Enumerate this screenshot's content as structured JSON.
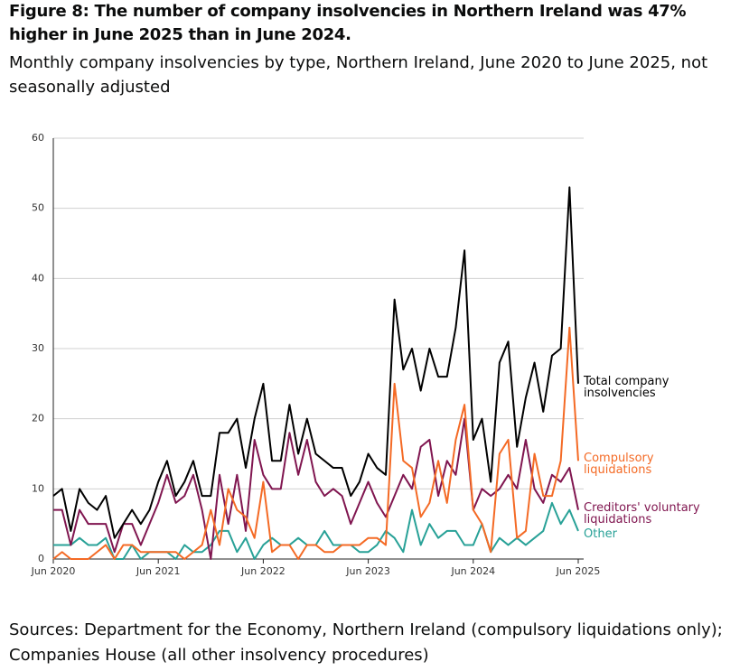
{
  "chart_data": {
    "type": "line",
    "title": "Figure 8: The number of company insolvencies in Northern Ireland was 47% higher in June 2025 than in June 2024.",
    "subtitle": "Monthly company insolvencies by type, Northern Ireland, June 2020 to June 2025, not seasonally adjusted",
    "source": "Sources: Department for the Economy, Northern Ireland (compulsory liquidations only); Companies House (all other insolvency procedures)",
    "x": [
      "2020-06",
      "2020-07",
      "2020-08",
      "2020-09",
      "2020-10",
      "2020-11",
      "2020-12",
      "2021-01",
      "2021-02",
      "2021-03",
      "2021-04",
      "2021-05",
      "2021-06",
      "2021-07",
      "2021-08",
      "2021-09",
      "2021-10",
      "2021-11",
      "2021-12",
      "2022-01",
      "2022-02",
      "2022-03",
      "2022-04",
      "2022-05",
      "2022-06",
      "2022-07",
      "2022-08",
      "2022-09",
      "2022-10",
      "2022-11",
      "2022-12",
      "2023-01",
      "2023-02",
      "2023-03",
      "2023-04",
      "2023-05",
      "2023-06",
      "2023-07",
      "2023-08",
      "2023-09",
      "2023-10",
      "2023-11",
      "2023-12",
      "2024-01",
      "2024-02",
      "2024-03",
      "2024-04",
      "2024-05",
      "2024-06",
      "2024-07",
      "2024-08",
      "2024-09",
      "2024-10",
      "2024-11",
      "2024-12",
      "2025-01",
      "2025-02",
      "2025-03",
      "2025-04",
      "2025-05",
      "2025-06"
    ],
    "xticks": [
      {
        "value": "2020-06",
        "label": "Jun 2020"
      },
      {
        "value": "2021-06",
        "label": "Jun 2021"
      },
      {
        "value": "2022-06",
        "label": "Jun 2022"
      },
      {
        "value": "2023-06",
        "label": "Jun 2023"
      },
      {
        "value": "2024-06",
        "label": "Jun 2024"
      },
      {
        "value": "2025-06",
        "label": "Jun 2025"
      }
    ],
    "ylim": [
      0,
      60
    ],
    "yticks": [
      0,
      10,
      20,
      30,
      40,
      50,
      60
    ],
    "grid": true,
    "series": [
      {
        "name": "Total company insolvencies",
        "color": "#000000",
        "values": [
          9,
          10,
          4,
          10,
          8,
          7,
          9,
          3,
          5,
          7,
          5,
          7,
          11,
          14,
          9,
          11,
          14,
          9,
          9,
          18,
          18,
          20,
          13,
          20,
          25,
          14,
          14,
          22,
          15,
          20,
          15,
          14,
          13,
          13,
          9,
          11,
          15,
          13,
          12,
          37,
          27,
          30,
          24,
          30,
          26,
          26,
          33,
          44,
          17,
          20,
          11,
          28,
          31,
          16,
          23,
          28,
          21,
          29,
          30,
          53,
          25
        ]
      },
      {
        "name": "Compulsory liquidations",
        "color": "#f46a25",
        "values": [
          0,
          1,
          0,
          0,
          0,
          1,
          2,
          0,
          2,
          2,
          1,
          1,
          1,
          1,
          1,
          0,
          1,
          2,
          7,
          2,
          10,
          7,
          6,
          3,
          11,
          1,
          2,
          2,
          0,
          2,
          2,
          1,
          1,
          2,
          2,
          2,
          3,
          3,
          2,
          25,
          14,
          13,
          6,
          8,
          14,
          8,
          17,
          22,
          7,
          5,
          1,
          15,
          17,
          3,
          4,
          15,
          9,
          9,
          14,
          33,
          14
        ]
      },
      {
        "name": "Creditors' voluntary liquidations",
        "color": "#801650",
        "values": [
          7,
          7,
          2,
          7,
          5,
          5,
          5,
          1,
          5,
          5,
          2,
          5,
          8,
          12,
          8,
          9,
          12,
          7,
          0,
          12,
          5,
          12,
          4,
          17,
          12,
          10,
          10,
          18,
          12,
          17,
          11,
          9,
          10,
          9,
          5,
          8,
          11,
          8,
          6,
          9,
          12,
          10,
          16,
          17,
          9,
          14,
          12,
          20,
          7,
          10,
          9,
          10,
          12,
          10,
          17,
          10,
          8,
          12,
          11,
          13,
          7
        ]
      },
      {
        "name": "Other",
        "color": "#28a197",
        "values": [
          2,
          2,
          2,
          3,
          2,
          2,
          3,
          0,
          0,
          2,
          0,
          1,
          1,
          1,
          0,
          2,
          1,
          1,
          2,
          4,
          4,
          1,
          3,
          0,
          2,
          3,
          2,
          2,
          3,
          2,
          2,
          4,
          2,
          2,
          2,
          1,
          1,
          2,
          4,
          3,
          1,
          7,
          2,
          5,
          3,
          4,
          4,
          2,
          2,
          5,
          1,
          3,
          2,
          3,
          2,
          3,
          4,
          8,
          5,
          7,
          4
        ]
      }
    ]
  }
}
